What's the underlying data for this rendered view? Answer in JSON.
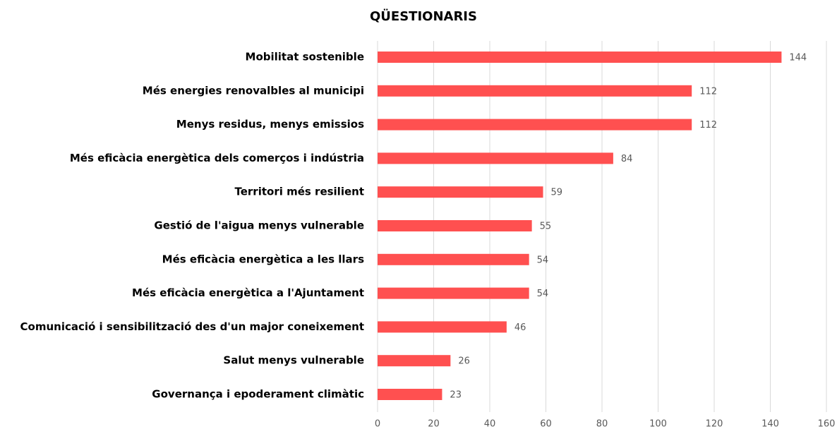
{
  "chart_data": {
    "type": "hbar",
    "title": "QÜESTIONARIS",
    "categories": [
      "Mobilitat sostenible",
      "Més energies renovalbles al municipi",
      "Menys residus, menys emissios",
      "Més eficàcia energètica dels comerços i indústria",
      "Territori més resilient",
      "Gestió de l'aigua menys vulnerable",
      "Més eficàcia energètica a les llars",
      "Més eficàcia energètica a l'Ajuntament",
      "Comunicació i sensibilització des d'un major coneixement",
      "Salut menys vulnerable",
      "Governança i epoderament climàtic"
    ],
    "values": [
      144,
      112,
      112,
      84,
      59,
      55,
      54,
      54,
      46,
      26,
      23
    ],
    "color": "#ff5050",
    "xlim": [
      0,
      160
    ],
    "xticks": [
      0,
      20,
      40,
      60,
      80,
      100,
      120,
      140,
      160
    ],
    "grid": true
  }
}
